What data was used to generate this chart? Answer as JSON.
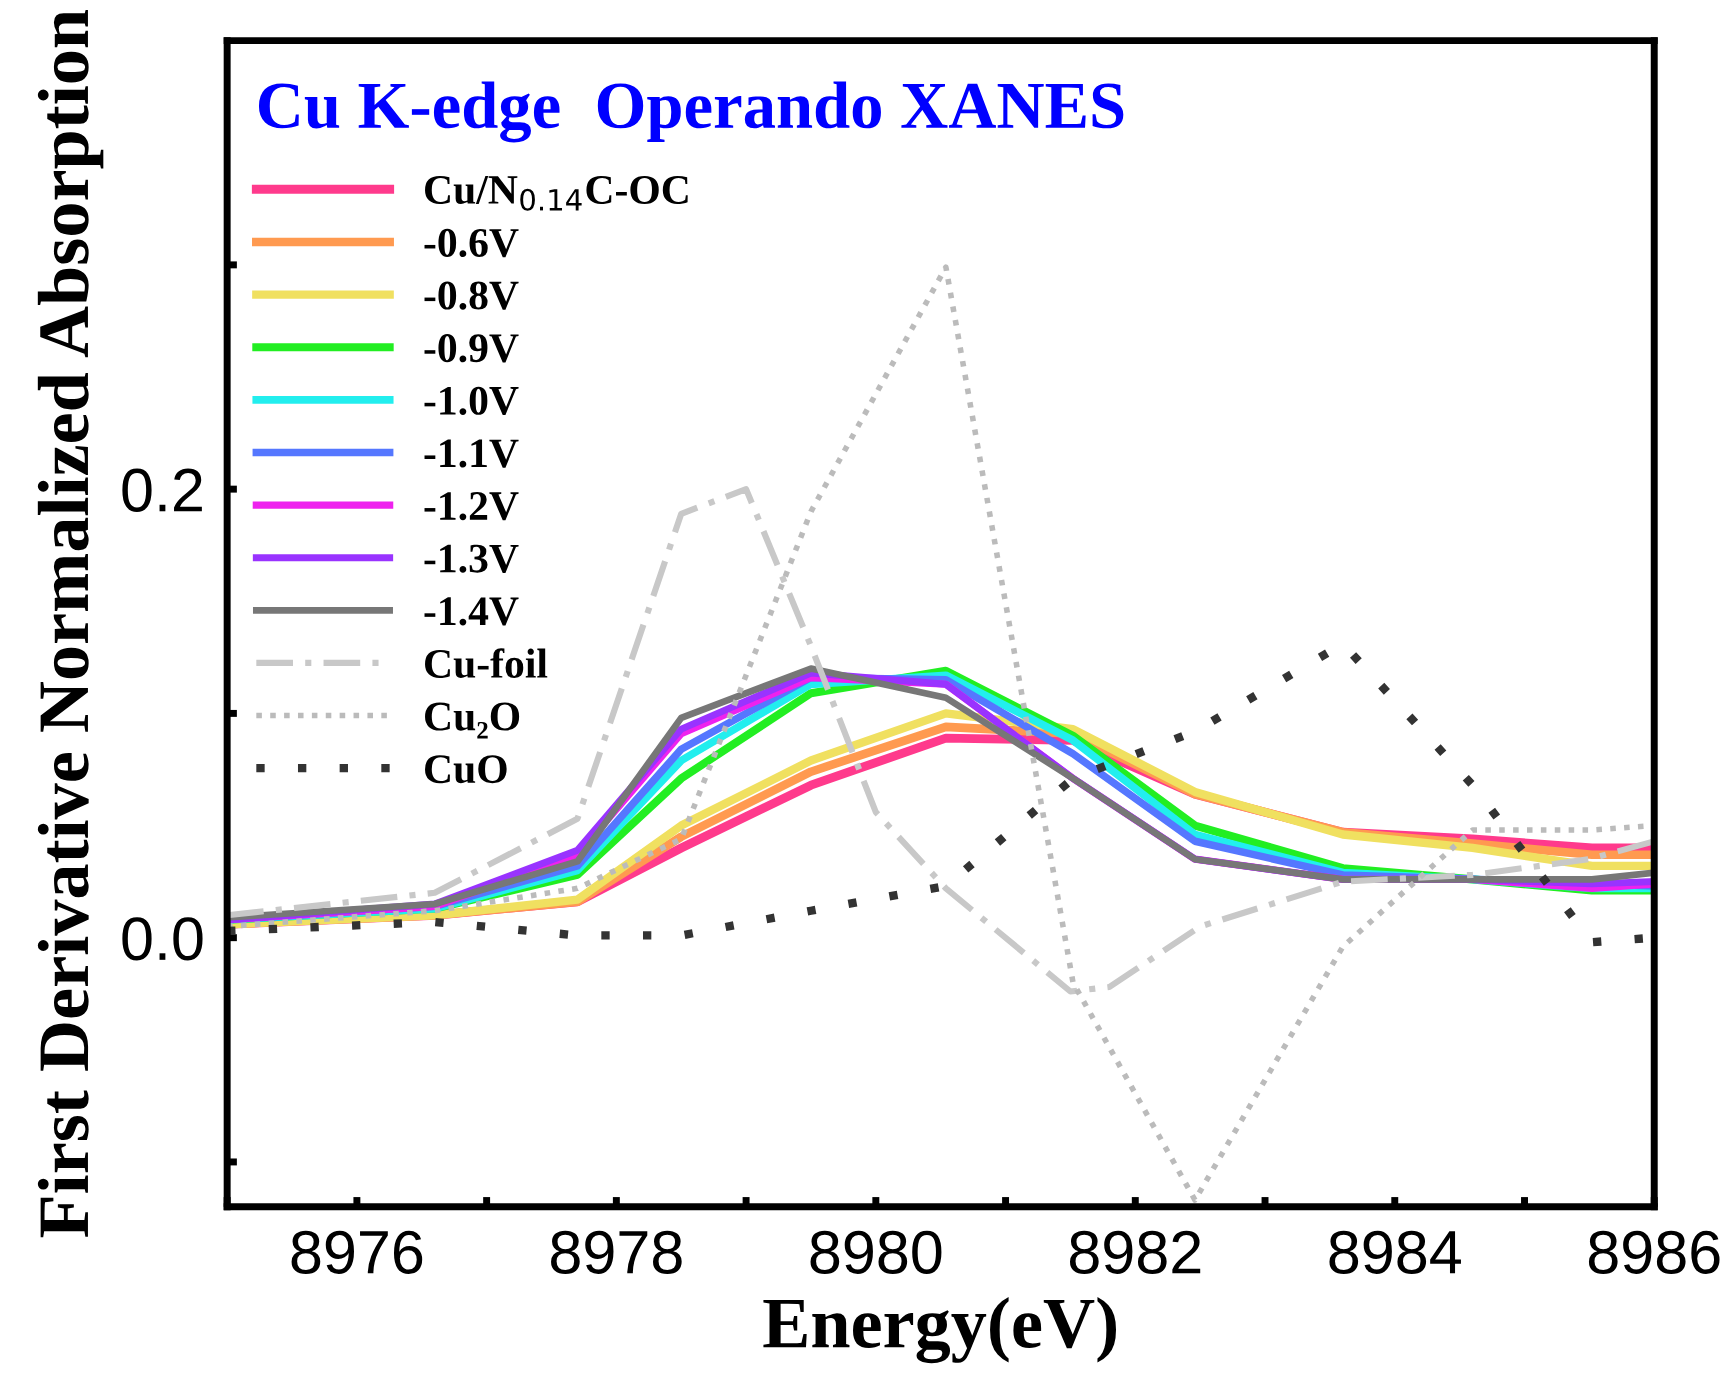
{
  "chart_data": {
    "type": "line",
    "title": "Cu K-edge  Operando XANES",
    "xlabel": "Energy(eV)",
    "ylabel": "First Derivative Normalized Absorption",
    "xlim": [
      8975,
      8986
    ],
    "ylim": [
      -0.12,
      0.4
    ],
    "xticks": [
      {
        "value": 8975,
        "label": null
      },
      8976,
      {
        "value": 8977,
        "label": null
      },
      8978,
      {
        "value": 8979,
        "label": null
      },
      8980,
      {
        "value": 8981,
        "label": null
      },
      8982,
      {
        "value": 8983,
        "label": null
      },
      8984,
      {
        "value": 8985,
        "label": null
      },
      8986
    ],
    "yticks": [
      {
        "value": -0.1,
        "label": null
      },
      {
        "value": 0.0,
        "label": "0.0"
      },
      {
        "value": 0.1,
        "label": null
      },
      {
        "value": 0.2,
        "label": "0.2"
      },
      {
        "value": 0.3,
        "label": null
      }
    ],
    "legend": "top left",
    "grid": false,
    "x": [
      8975,
      8976.6,
      8977.7,
      8978.5,
      8979.5,
      8980.54,
      8981.52,
      8982.46,
      8983.6,
      8984.6,
      8985.52,
      8986
    ],
    "series": [
      {
        "name": "Cu/N$_{0.14}$C-OC",
        "color": "#ff3a8c",
        "values": [
          0.006,
          0.01,
          0.016,
          0.04,
          0.068,
          0.089,
          0.088,
          0.064,
          0.047,
          0.044,
          0.04,
          0.04
        ]
      },
      {
        "name": "-0.6V",
        "color": "#ff9a50",
        "values": [
          0.006,
          0.01,
          0.016,
          0.045,
          0.074,
          0.094,
          0.091,
          0.064,
          0.047,
          0.042,
          0.037,
          0.037
        ]
      },
      {
        "name": "-0.8V",
        "color": "#f0e060",
        "values": [
          0.006,
          0.01,
          0.017,
          0.05,
          0.079,
          0.1,
          0.093,
          0.065,
          0.046,
          0.04,
          0.032,
          0.032
        ]
      },
      {
        "name": "-0.9V",
        "color": "#22ee22",
        "values": [
          0.008,
          0.013,
          0.028,
          0.071,
          0.109,
          0.119,
          0.09,
          0.05,
          0.031,
          0.026,
          0.021,
          0.021
        ]
      },
      {
        "name": "-1.0V",
        "color": "#22eeee",
        "values": [
          0.008,
          0.013,
          0.03,
          0.079,
          0.113,
          0.117,
          0.088,
          0.046,
          0.029,
          0.026,
          0.022,
          0.022
        ]
      },
      {
        "name": "-1.1V",
        "color": "#5577ff",
        "values": [
          0.008,
          0.014,
          0.032,
          0.084,
          0.116,
          0.115,
          0.082,
          0.043,
          0.028,
          0.026,
          0.024,
          0.023
        ]
      },
      {
        "name": "-1.2V",
        "color": "#ee22ee",
        "values": [
          0.008,
          0.014,
          0.037,
          0.091,
          0.116,
          0.113,
          0.071,
          0.035,
          0.026,
          0.026,
          0.022,
          0.024
        ]
      },
      {
        "name": "-1.3V",
        "color": "#9933ff",
        "values": [
          0.008,
          0.015,
          0.039,
          0.093,
          0.118,
          0.113,
          0.071,
          0.035,
          0.026,
          0.026,
          0.024,
          0.025
        ]
      },
      {
        "name": "-1.4V",
        "color": "#777777",
        "values": [
          0.009,
          0.015,
          0.034,
          0.098,
          0.12,
          0.107,
          0.071,
          0.035,
          0.026,
          0.026,
          0.026,
          0.029
        ]
      },
      {
        "name": "Cu-foil",
        "color": "#c8c8c8",
        "line_style": "dashdot",
        "x": [
          8975,
          8976.6,
          8977.7,
          8978.5,
          8979,
          8979.5,
          8980,
          8980.54,
          8981.5,
          8981.8,
          8982.5,
          8983.6,
          8984.6,
          8985.5,
          8986
        ],
        "values": [
          0.01,
          0.02,
          0.053,
          0.189,
          0.2,
          0.13,
          0.056,
          0.022,
          -0.024,
          -0.022,
          0.005,
          0.025,
          0.028,
          0.035,
          0.043
        ]
      },
      {
        "name": "Cu₂O",
        "color": "#bbbbbb",
        "line_style": "dotted",
        "x": [
          8975,
          8976.6,
          8977.7,
          8978.5,
          8979.5,
          8980.54,
          8981.52,
          8982.46,
          8983.6,
          8984.6,
          8985.52,
          8986
        ],
        "values": [
          0.005,
          0.012,
          0.022,
          0.044,
          0.19,
          0.299,
          -0.02,
          -0.117,
          -0.004,
          0.048,
          0.048,
          0.05
        ]
      },
      {
        "name": "CuO",
        "color": "#333333",
        "line_style": "loosely dotted",
        "values": [
          0.003,
          0.007,
          0.001,
          0.001,
          0.012,
          0.023,
          0.071,
          0.092,
          0.131,
          0.068,
          -0.002,
          0.0
        ]
      }
    ]
  }
}
